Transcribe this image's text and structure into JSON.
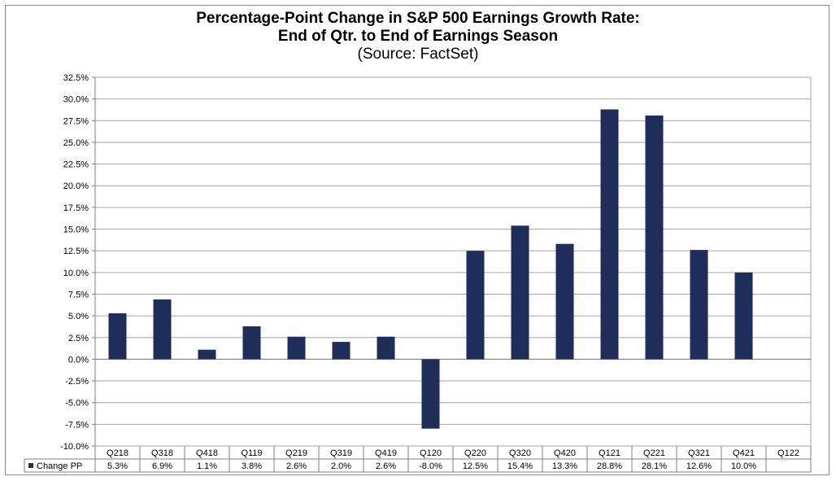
{
  "chart_data": {
    "type": "bar",
    "title_line1": "Percentage-Point Change in S&P 500 Earnings Growth Rate:",
    "title_line2": "End of Qtr. to End of Earnings Season",
    "subtitle": "(Source: FactSet)",
    "categories": [
      "Q218",
      "Q318",
      "Q418",
      "Q119",
      "Q219",
      "Q319",
      "Q419",
      "Q120",
      "Q220",
      "Q320",
      "Q420",
      "Q121",
      "Q221",
      "Q321",
      "Q421",
      "Q122"
    ],
    "series": [
      {
        "name": "Change PP",
        "values": [
          5.3,
          6.9,
          1.1,
          3.8,
          2.6,
          2.0,
          2.6,
          -8.0,
          12.5,
          15.4,
          13.3,
          28.8,
          28.1,
          12.6,
          10.0,
          null
        ],
        "labels": [
          "5.3%",
          "6.9%",
          "1.1%",
          "3.8%",
          "2.6%",
          "2.0%",
          "2.6%",
          "-8.0%",
          "12.5%",
          "15.4%",
          "13.3%",
          "28.8%",
          "28.1%",
          "12.6%",
          "10.0%",
          ""
        ],
        "color": "#1f2d5a"
      }
    ],
    "y_ticks": [
      "32.5%",
      "30.0%",
      "27.5%",
      "25.0%",
      "22.5%",
      "20.0%",
      "17.5%",
      "15.0%",
      "12.5%",
      "10.0%",
      "7.5%",
      "5.0%",
      "2.5%",
      "0.0%",
      "-2.5%",
      "-5.0%",
      "-7.5%",
      "-10.0%"
    ],
    "ylim": [
      -10,
      32.5
    ],
    "ytick_step": 2.5,
    "grid": true,
    "legend": "data-table"
  }
}
